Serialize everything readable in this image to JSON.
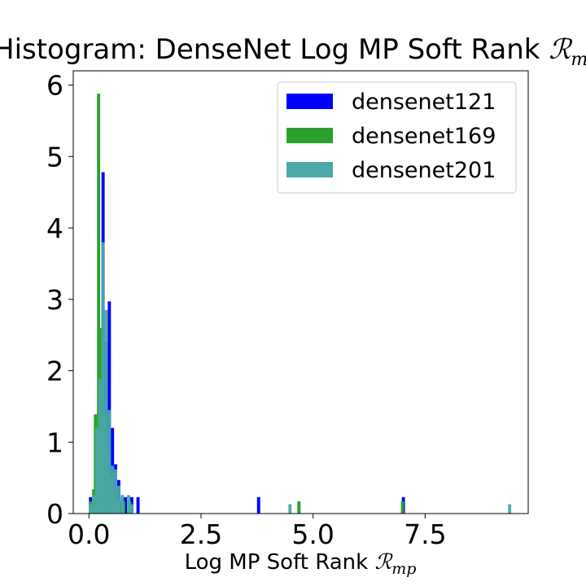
{
  "chart_data": {
    "type": "histogram",
    "title": "Histogram: DenseNet Log MP Soft Rank ",
    "title_math": "ℛ",
    "title_math_sub": "mp",
    "xlabel": "Log MP Soft Rank ",
    "xlabel_math": "ℛ",
    "xlabel_math_sub": "mp",
    "ylabel": "",
    "xlim": [
      -0.35,
      9.8
    ],
    "ylim": [
      0,
      6.2
    ],
    "xticks": [
      0.0,
      2.5,
      5.0,
      7.5
    ],
    "xtick_labels": [
      "0.0",
      "2.5",
      "5.0",
      "7.5"
    ],
    "yticks": [
      0,
      1,
      2,
      3,
      4,
      5,
      6
    ],
    "ytick_labels": [
      "0",
      "1",
      "2",
      "3",
      "4",
      "5",
      "6"
    ],
    "grid": false,
    "legend_position": "top-right",
    "series": [
      {
        "name": "densenet121",
        "color": "#0000ff",
        "bin_width": 0.0707,
        "bins": [
          {
            "x": 0.0,
            "y": 0.23
          },
          {
            "x": 0.07,
            "y": 0.12
          },
          {
            "x": 0.14,
            "y": 0.25
          },
          {
            "x": 0.21,
            "y": 1.25
          },
          {
            "x": 0.28,
            "y": 4.78
          },
          {
            "x": 0.35,
            "y": 2.4
          },
          {
            "x": 0.42,
            "y": 2.97
          },
          {
            "x": 0.49,
            "y": 1.2
          },
          {
            "x": 0.56,
            "y": 0.69
          },
          {
            "x": 0.63,
            "y": 0.47
          },
          {
            "x": 0.71,
            "y": 0.23
          },
          {
            "x": 0.78,
            "y": 0.23
          },
          {
            "x": 0.92,
            "y": 0.23
          },
          {
            "x": 1.06,
            "y": 0.23
          },
          {
            "x": 3.75,
            "y": 0.23
          },
          {
            "x": 6.98,
            "y": 0.23
          }
        ]
      },
      {
        "name": "densenet169",
        "color": "#2ca02c",
        "bin_width": 0.0707,
        "bins": [
          {
            "x": 0.0,
            "y": 0.17
          },
          {
            "x": 0.07,
            "y": 0.34
          },
          {
            "x": 0.11,
            "y": 1.39
          },
          {
            "x": 0.18,
            "y": 5.88
          },
          {
            "x": 0.25,
            "y": 2.6
          },
          {
            "x": 0.32,
            "y": 1.35
          },
          {
            "x": 0.39,
            "y": 0.86
          },
          {
            "x": 0.46,
            "y": 0.51
          },
          {
            "x": 0.53,
            "y": 0.34
          },
          {
            "x": 0.6,
            "y": 0.17
          },
          {
            "x": 0.67,
            "y": 0.17
          },
          {
            "x": 0.74,
            "y": 0.17
          },
          {
            "x": 0.88,
            "y": 0.17
          },
          {
            "x": 4.65,
            "y": 0.17
          },
          {
            "x": 6.96,
            "y": 0.17
          }
        ]
      },
      {
        "name": "densenet201",
        "color": "#4aa8a8",
        "bin_width": 0.0707,
        "bins": [
          {
            "x": 0.0,
            "y": 0.13
          },
          {
            "x": 0.07,
            "y": 0.26
          },
          {
            "x": 0.14,
            "y": 1.2
          },
          {
            "x": 0.21,
            "y": 1.89
          },
          {
            "x": 0.28,
            "y": 3.8
          },
          {
            "x": 0.35,
            "y": 2.85
          },
          {
            "x": 0.42,
            "y": 1.45
          },
          {
            "x": 0.49,
            "y": 0.67
          },
          {
            "x": 0.56,
            "y": 0.62
          },
          {
            "x": 0.63,
            "y": 0.39
          },
          {
            "x": 0.71,
            "y": 0.26
          },
          {
            "x": 0.85,
            "y": 0.26
          },
          {
            "x": 0.92,
            "y": 0.13
          },
          {
            "x": 4.45,
            "y": 0.13
          },
          {
            "x": 9.35,
            "y": 0.13
          }
        ]
      }
    ]
  }
}
